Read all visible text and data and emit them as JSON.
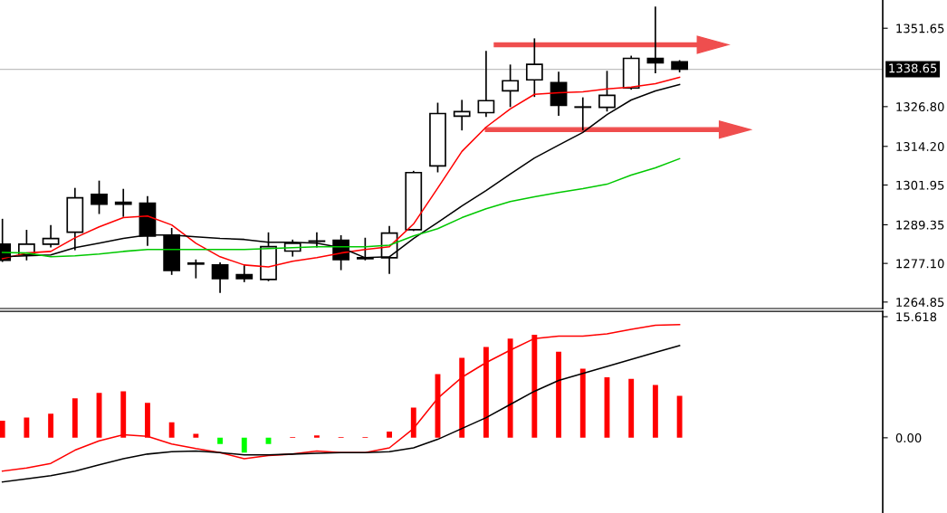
{
  "chart_data": [
    {
      "type": "candlestick",
      "categories": [
        null,
        null,
        null,
        null,
        null,
        null,
        null,
        null,
        null,
        null,
        null,
        null,
        null,
        null,
        null,
        null,
        null,
        null,
        null,
        null,
        null,
        null,
        null,
        null,
        null,
        null,
        null,
        null,
        null
      ],
      "ohlc": [
        [
          1283.2,
          1291.0,
          1277.8,
          1278.1
        ],
        [
          1279.8,
          1287.5,
          1278.3,
          1283.2
        ],
        [
          1283.2,
          1289.0,
          1282.4,
          1285.0
        ],
        [
          1287.0,
          1300.8,
          1281.5,
          1297.9
        ],
        [
          1299.0,
          1303.1,
          1293.0,
          1295.9
        ],
        [
          1296.5,
          1300.5,
          1292.1,
          1295.9
        ],
        [
          1296.2,
          1298.2,
          1282.9,
          1285.8
        ],
        [
          1286.1,
          1288.1,
          1273.7,
          1274.9
        ],
        [
          1277.2,
          1278.1,
          1272.6,
          1276.9
        ],
        [
          1276.6,
          1277.2,
          1268.0,
          1272.3
        ],
        [
          1273.5,
          1276.6,
          1271.4,
          1272.3
        ],
        [
          1272.0,
          1286.7,
          1271.7,
          1282.4
        ],
        [
          1281.0,
          1284.4,
          1279.5,
          1283.5
        ],
        [
          1284.1,
          1286.7,
          1282.4,
          1284.2
        ],
        [
          1284.4,
          1285.8,
          1275.2,
          1278.3
        ],
        [
          1278.9,
          1285.0,
          1278.3,
          1278.6
        ],
        [
          1278.9,
          1288.7,
          1274.0,
          1286.7
        ],
        [
          1287.8,
          1306.2,
          1287.6,
          1305.9
        ],
        [
          1308.0,
          1327.8,
          1306.2,
          1324.6
        ],
        [
          1323.8,
          1328.7,
          1319.5,
          1325.2
        ],
        [
          1324.9,
          1344.2,
          1323.8,
          1328.7
        ],
        [
          1331.8,
          1339.9,
          1326.9,
          1335.0
        ],
        [
          1335.3,
          1348.2,
          1330.1,
          1340.2
        ],
        [
          1334.4,
          1337.6,
          1324.1,
          1327.2
        ],
        [
          1326.7,
          1329.5,
          1319.5,
          1326.6
        ],
        [
          1326.6,
          1337.9,
          1325.5,
          1330.4
        ],
        [
          1332.7,
          1342.7,
          1332.4,
          1342.1
        ],
        [
          1342.1,
          1358.3,
          1337.6,
          1340.7
        ],
        [
          1341.0,
          1341.3,
          1337.9,
          1338.65
        ]
      ],
      "series": [
        {
          "type": "line",
          "color": "#ff0000",
          "values": [
            1278.6,
            1280.4,
            1280.9,
            1285.2,
            1288.7,
            1291.6,
            1292.1,
            1289.3,
            1283.5,
            1279.2,
            1276.6,
            1276.0,
            1277.8,
            1278.9,
            1280.4,
            1281.5,
            1282.4,
            1289.6,
            1301.0,
            1312.6,
            1320.3,
            1326.1,
            1330.7,
            1331.2,
            1331.5,
            1332.4,
            1333.0,
            1334.1,
            1336.1
          ]
        },
        {
          "type": "line",
          "color": "#000000",
          "values": [
            1279.2,
            1279.5,
            1279.8,
            1282.1,
            1283.5,
            1285.0,
            1286.1,
            1286.1,
            1285.5,
            1285.0,
            1284.7,
            1283.8,
            1283.8,
            1283.5,
            1282.1,
            1278.9,
            1279.2,
            1285.0,
            1290.1,
            1295.3,
            1300.2,
            1305.4,
            1310.5,
            1314.6,
            1318.6,
            1324.3,
            1328.9,
            1331.8,
            1333.8
          ]
        },
        {
          "type": "line",
          "color": "#00c800",
          "values": [
            1280.6,
            1280.4,
            1279.2,
            1279.5,
            1280.1,
            1280.9,
            1281.5,
            1281.5,
            1281.5,
            1281.5,
            1281.5,
            1281.8,
            1282.1,
            1282.4,
            1282.4,
            1282.4,
            1282.9,
            1285.8,
            1288.1,
            1291.6,
            1294.4,
            1296.7,
            1298.2,
            1299.6,
            1300.8,
            1302.2,
            1305.1,
            1307.4,
            1310.3
          ]
        }
      ],
      "ylim": [
        1262.8,
        1360.6
      ],
      "yticks": [
        1264.85,
        {
          "value": 1277.1,
          "label": "1277.10"
        },
        1289.35,
        1301.95,
        {
          "value": 1314.2,
          "label": "1314.20"
        },
        {
          "value": 1326.8,
          "label": "1326.80"
        },
        1351.65
      ],
      "ref_lines": [
        {
          "axis": "y",
          "value": 1338.65,
          "label": "1338.65",
          "color": "#c0c0c0"
        }
      ],
      "tick_labels": "y",
      "grid": false,
      "legend": false
    },
    {
      "type": "bar",
      "categories": [
        null,
        null,
        null,
        null,
        null,
        null,
        null,
        null,
        null,
        null,
        null,
        null,
        null,
        null,
        null,
        null,
        null,
        null,
        null,
        null,
        null,
        null,
        null,
        null,
        null,
        null,
        null,
        null,
        null
      ],
      "series": [
        {
          "type": "bar",
          "colors": [
            "#ff0000",
            "#ff0000",
            "#ff0000",
            "#ff0000",
            "#ff0000",
            "#ff0000",
            "#ff0000",
            "#ff0000",
            "#ff0000",
            "#00ff00",
            "#00ff00",
            "#00ff00",
            "#ff0000",
            "#ff0000",
            "#ff0000",
            "#ff0000",
            "#ff0000",
            "#ff0000",
            "#ff0000",
            "#ff0000",
            "#ff0000",
            "#ff0000",
            "#ff0000",
            "#ff0000",
            "#ff0000",
            "#ff0000",
            "#ff0000",
            "#ff0000",
            "#ff0000"
          ],
          "values": [
            2.2,
            2.6,
            3.1,
            5.1,
            5.8,
            6.0,
            4.5,
            2.0,
            0.5,
            -0.8,
            -1.9,
            -0.8,
            0.1,
            0.3,
            0.1,
            0.1,
            0.8,
            3.9,
            8.2,
            10.3,
            11.7,
            12.8,
            13.3,
            11.1,
            8.9,
            7.8,
            7.6,
            6.8,
            5.4
          ]
        },
        {
          "type": "line",
          "color": "#ff0000",
          "values": [
            -4.3,
            -3.9,
            -3.3,
            -1.6,
            -0.4,
            0.4,
            0.2,
            -0.8,
            -1.4,
            -1.9,
            -2.7,
            -2.3,
            -2.1,
            -1.7,
            -1.9,
            -1.9,
            -1.3,
            1.2,
            5.1,
            7.8,
            9.7,
            11.3,
            12.8,
            13.1,
            13.1,
            13.4,
            14.0,
            14.5,
            14.6
          ]
        },
        {
          "type": "line",
          "color": "#000000",
          "values": [
            -5.7,
            -5.3,
            -4.9,
            -4.3,
            -3.5,
            -2.7,
            -2.1,
            -1.8,
            -1.7,
            -1.9,
            -2.2,
            -2.2,
            -2.1,
            -2.0,
            -1.9,
            -1.9,
            -1.8,
            -1.3,
            -0.2,
            1.2,
            2.6,
            4.3,
            6.0,
            7.4,
            8.3,
            9.2,
            10.1,
            11.0,
            11.9
          ]
        }
      ],
      "ylim": [
        -9.7,
        16.3
      ],
      "yticks": [
        {
          "value": 0,
          "label": "0.00"
        },
        15.618
      ],
      "tick_labels": "y",
      "grid": false,
      "legend": false
    }
  ]
}
